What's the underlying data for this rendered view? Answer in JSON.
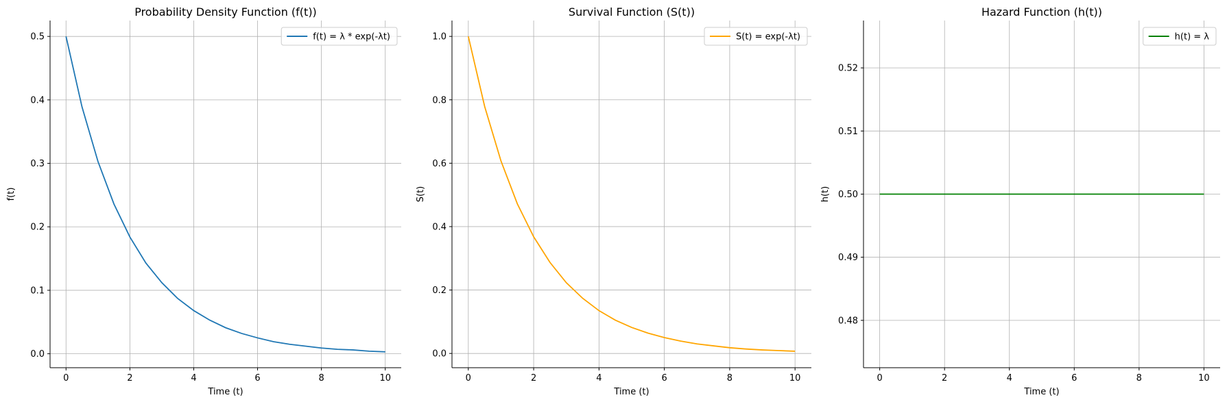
{
  "chart_data": [
    {
      "type": "line",
      "title": "Probability Density Function (f(t))",
      "xlabel": "Time (t)",
      "ylabel": "f(t)",
      "xlim": [
        -0.5,
        10.5
      ],
      "ylim": [
        -0.022,
        0.525
      ],
      "xticks": [
        0,
        2,
        4,
        6,
        8,
        10
      ],
      "yticks": [
        0.0,
        0.1,
        0.2,
        0.3,
        0.4,
        0.5
      ],
      "grid": true,
      "legend": "upper right",
      "series": [
        {
          "name": "f(t) = λ * exp(-λt)",
          "color": "#1f77b4",
          "x": [
            0,
            0.5,
            1,
            1.5,
            2,
            2.5,
            3,
            3.5,
            4,
            4.5,
            5,
            5.5,
            6,
            6.5,
            7,
            7.5,
            8,
            8.5,
            9,
            9.5,
            10
          ],
          "y": [
            0.5,
            0.389,
            0.303,
            0.236,
            0.184,
            0.143,
            0.112,
            0.087,
            0.068,
            0.053,
            0.041,
            0.032,
            0.025,
            0.019,
            0.015,
            0.012,
            0.009,
            0.007,
            0.006,
            0.004,
            0.003
          ]
        }
      ]
    },
    {
      "type": "line",
      "title": "Survival Function (S(t))",
      "xlabel": "Time (t)",
      "ylabel": "S(t)",
      "xlim": [
        -0.5,
        10.5
      ],
      "ylim": [
        -0.045,
        1.05
      ],
      "xticks": [
        0,
        2,
        4,
        6,
        8,
        10
      ],
      "yticks": [
        0.0,
        0.2,
        0.4,
        0.6,
        0.8,
        1.0
      ],
      "grid": true,
      "legend": "upper right",
      "series": [
        {
          "name": "S(t) = exp(-λt)",
          "color": "#ffa500",
          "x": [
            0,
            0.5,
            1,
            1.5,
            2,
            2.5,
            3,
            3.5,
            4,
            4.5,
            5,
            5.5,
            6,
            6.5,
            7,
            7.5,
            8,
            8.5,
            9,
            9.5,
            10
          ],
          "y": [
            1.0,
            0.779,
            0.607,
            0.472,
            0.368,
            0.287,
            0.223,
            0.174,
            0.135,
            0.105,
            0.082,
            0.064,
            0.05,
            0.039,
            0.03,
            0.024,
            0.018,
            0.014,
            0.011,
            0.009,
            0.007
          ]
        }
      ]
    },
    {
      "type": "line",
      "title": "Hazard Function (h(t))",
      "xlabel": "Time (t)",
      "ylabel": "h(t)",
      "xlim": [
        -0.5,
        10.5
      ],
      "ylim": [
        0.4725,
        0.5275
      ],
      "xticks": [
        0,
        2,
        4,
        6,
        8,
        10
      ],
      "yticks": [
        0.48,
        0.49,
        0.5,
        0.51,
        0.52
      ],
      "grid": true,
      "legend": "upper right",
      "series": [
        {
          "name": "h(t) = λ",
          "color": "#008000",
          "x": [
            0,
            10
          ],
          "y": [
            0.5,
            0.5
          ]
        }
      ]
    }
  ]
}
